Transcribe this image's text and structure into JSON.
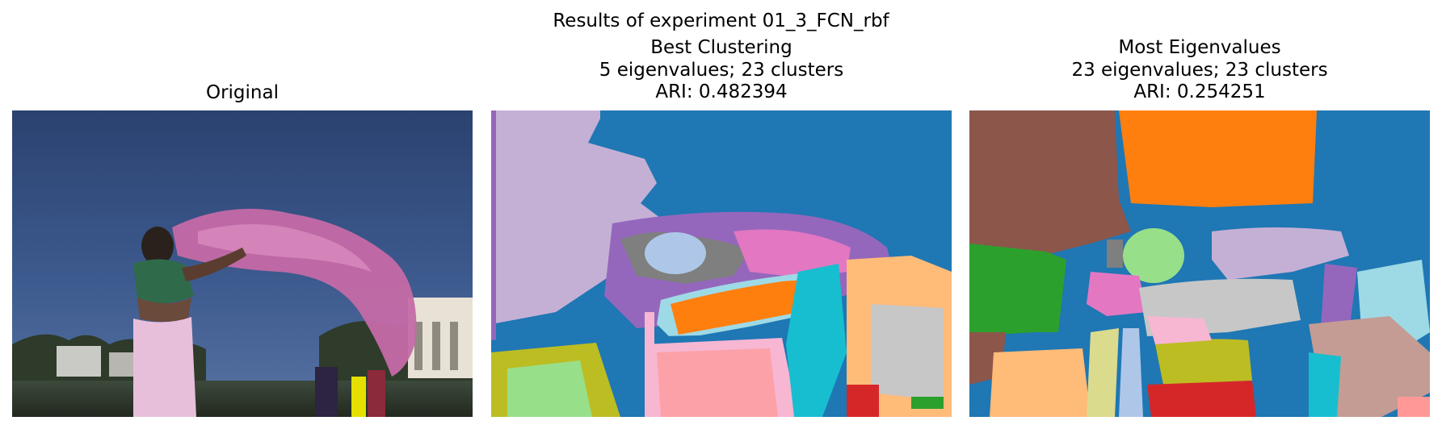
{
  "figure": {
    "suptitle": "Results of experiment 01_3_FCN_rbf"
  },
  "panels": [
    {
      "lines": [
        "Original"
      ],
      "kind": "photo"
    },
    {
      "lines": [
        "Best Clustering",
        "5 eigenvalues; 23 clusters",
        "ARI: 0.482394"
      ],
      "kind": "segmentation"
    },
    {
      "lines": [
        "Most Eigenvalues",
        "23 eigenvalues; 23 clusters",
        "ARI: 0.254251"
      ],
      "kind": "segmentation"
    }
  ],
  "palette": {
    "tab_blue": "#1f77b4",
    "tab_orange": "#ff7f0e",
    "tab_green": "#2ca02c",
    "tab_red": "#d62728",
    "tab_purple": "#9467bd",
    "tab_brown": "#8c564b",
    "tab_pink": "#e377c2",
    "tab_gray": "#7f7f7f",
    "tab_olive": "#bcbd22",
    "tab_cyan": "#17becf",
    "light_blue": "#aec7e8",
    "light_orange": "#ffbb78",
    "light_green": "#98df8a",
    "light_red": "#ff9896",
    "light_purple": "#c5b0d5",
    "light_brown": "#c49c94",
    "light_pink": "#f7b6d2",
    "light_gray": "#c7c7c7",
    "light_olive": "#dbdb8d",
    "light_cyan": "#9edae5"
  }
}
